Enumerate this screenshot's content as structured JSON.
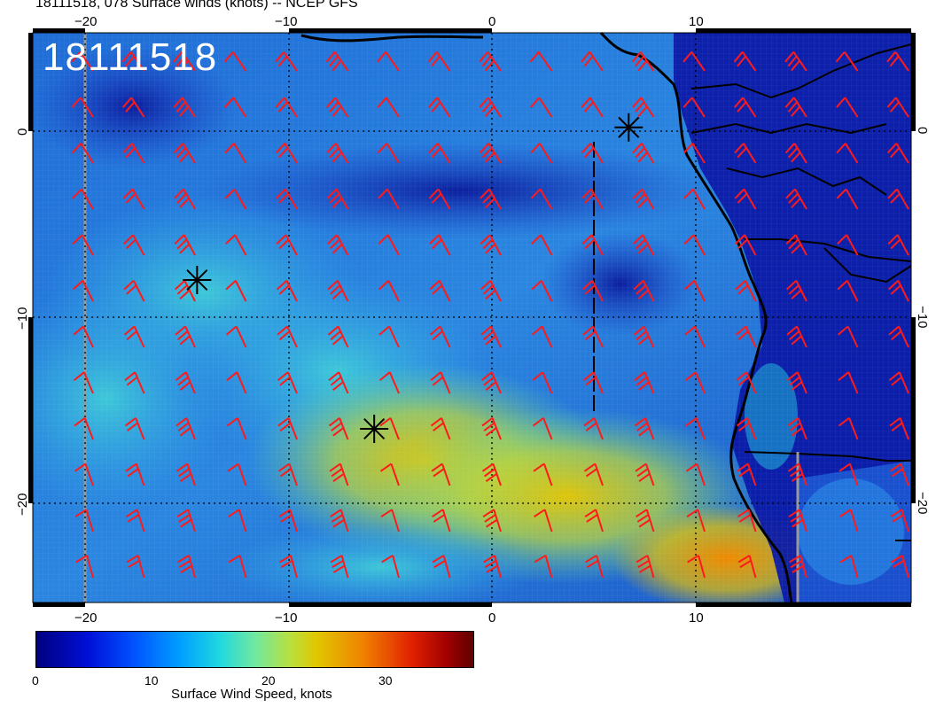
{
  "title": "18111518, 078 Surface winds (knots) -- NCEP GFS",
  "stamp": "18111518",
  "axes": {
    "lon_ticks": [
      "−20",
      "−10",
      "0",
      "10"
    ],
    "lat_ticks": [
      "0",
      "−10",
      "−20"
    ]
  },
  "colorbar": {
    "labels": [
      "0",
      "10",
      "20",
      "30"
    ],
    "title": "Surface Wind Speed, knots"
  },
  "colors": {
    "barb": "#ff1a1a",
    "land": "#000000",
    "marker": "#000000"
  },
  "markers": [
    {
      "name": "storm-marker-1",
      "lon": 6.7,
      "lat": 0.2
    },
    {
      "name": "storm-marker-2",
      "lon": -14.5,
      "lat": -8
    },
    {
      "name": "storm-marker-3",
      "lon": -5.8,
      "lat": -16
    }
  ]
}
